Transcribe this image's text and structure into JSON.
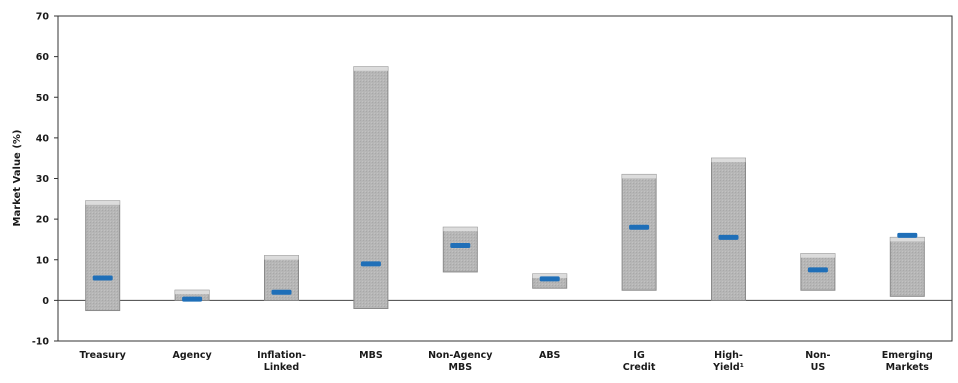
{
  "chart_data": {
    "type": "bar",
    "subtype": "floating-range-with-marker",
    "ylabel": "Market Value (%)",
    "ylim": [
      -10,
      70
    ],
    "yticks": [
      -10,
      0,
      10,
      20,
      30,
      40,
      50,
      60,
      70
    ],
    "grid": false,
    "categories": [
      [
        "Treasury"
      ],
      [
        "Agency"
      ],
      [
        "Inflation-",
        "Linked"
      ],
      [
        "MBS"
      ],
      [
        "Non-Agency",
        "MBS"
      ],
      [
        "ABS"
      ],
      [
        "IG",
        "Credit"
      ],
      [
        "High-",
        "Yield¹"
      ],
      [
        "Non-",
        "US"
      ],
      [
        "Emerging",
        "Markets"
      ]
    ],
    "ranges": [
      {
        "low": -2.5,
        "high": 24.5,
        "marker": 5.5
      },
      {
        "low": 0,
        "high": 2.5,
        "marker": 0.3
      },
      {
        "low": 0,
        "high": 11,
        "marker": 2
      },
      {
        "low": -2,
        "high": 57.5,
        "marker": 9
      },
      {
        "low": 7,
        "high": 18,
        "marker": 13.5
      },
      {
        "low": 3,
        "high": 6.5,
        "marker": 5.3
      },
      {
        "low": 2.5,
        "high": 31,
        "marker": 18
      },
      {
        "low": 0,
        "high": 35,
        "marker": 15.5
      },
      {
        "low": 2.5,
        "high": 11.5,
        "marker": 7.5
      },
      {
        "low": 1,
        "high": 15.5,
        "marker": 16
      }
    ],
    "colors": {
      "bar_fill": "#b4b4b4",
      "bar_stroke": "#8a8a8a",
      "marker": "#1f6fb8",
      "axis": "#333333"
    }
  }
}
